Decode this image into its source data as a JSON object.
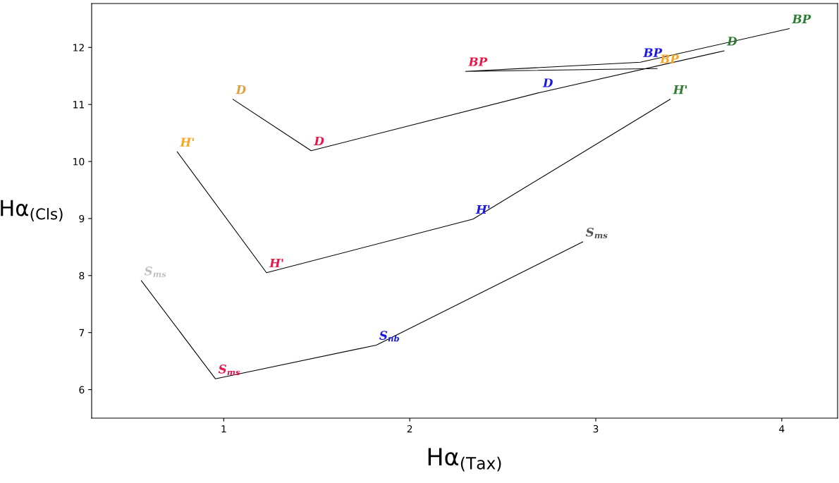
{
  "chart_data": {
    "type": "line",
    "xlabel": "Hα$_{(Tax)}$",
    "ylabel": "Hα$_{(Cls)}$",
    "xlim": [
      0.29,
      4.3
    ],
    "ylim": [
      5.5,
      12.77
    ],
    "xticks": [
      1,
      2,
      3,
      4
    ],
    "yticks": [
      6,
      7,
      8,
      9,
      10,
      11,
      12
    ],
    "grid": false,
    "marker": "none",
    "line_style": "solid",
    "series": [
      {
        "color": "#000000",
        "x": [
          0.557,
          0.955,
          1.82,
          2.93
        ],
        "values": [
          7.91,
          6.19,
          6.78,
          8.59
        ],
        "value_labels": [
          "S$_{ms}$",
          "S$_{ms}$",
          "S$_{nb}$",
          "S$_{ms}$"
        ],
        "colors": [
          "#c0c0c0",
          "#e8174a",
          "#1a1ae0",
          "#555555"
        ]
      },
      {
        "color": "#000000",
        "x": [
          0.75,
          1.23,
          2.34,
          3.4
        ],
        "values": [
          10.17,
          8.05,
          8.99,
          11.09
        ],
        "value_labels": [
          "H'",
          "H'",
          "H'",
          "H'"
        ],
        "colors": [
          "#f5a623",
          "#e8174a",
          "#1a1ae0",
          "#2e7d32"
        ]
      },
      {
        "color": "#000000",
        "x": [
          1.05,
          1.47,
          2.7,
          3.69
        ],
        "values": [
          11.09,
          10.19,
          11.21,
          11.94
        ],
        "value_labels": [
          "D",
          "D",
          "D",
          "D"
        ],
        "colors": [
          "#e0a040",
          "#e8174a",
          "#1a1ae0",
          "#2e7d32"
        ]
      },
      {
        "color": "#000000",
        "x": [
          3.33,
          2.3,
          3.24,
          4.04
        ],
        "values": [
          11.63,
          11.58,
          11.74,
          12.33
        ],
        "value_labels": [
          "BP",
          "BP",
          "BP",
          "BP"
        ],
        "colors": [
          "#f5a623",
          "#e8174a",
          "#1a1ae0",
          "#2e7d32"
        ]
      }
    ]
  }
}
